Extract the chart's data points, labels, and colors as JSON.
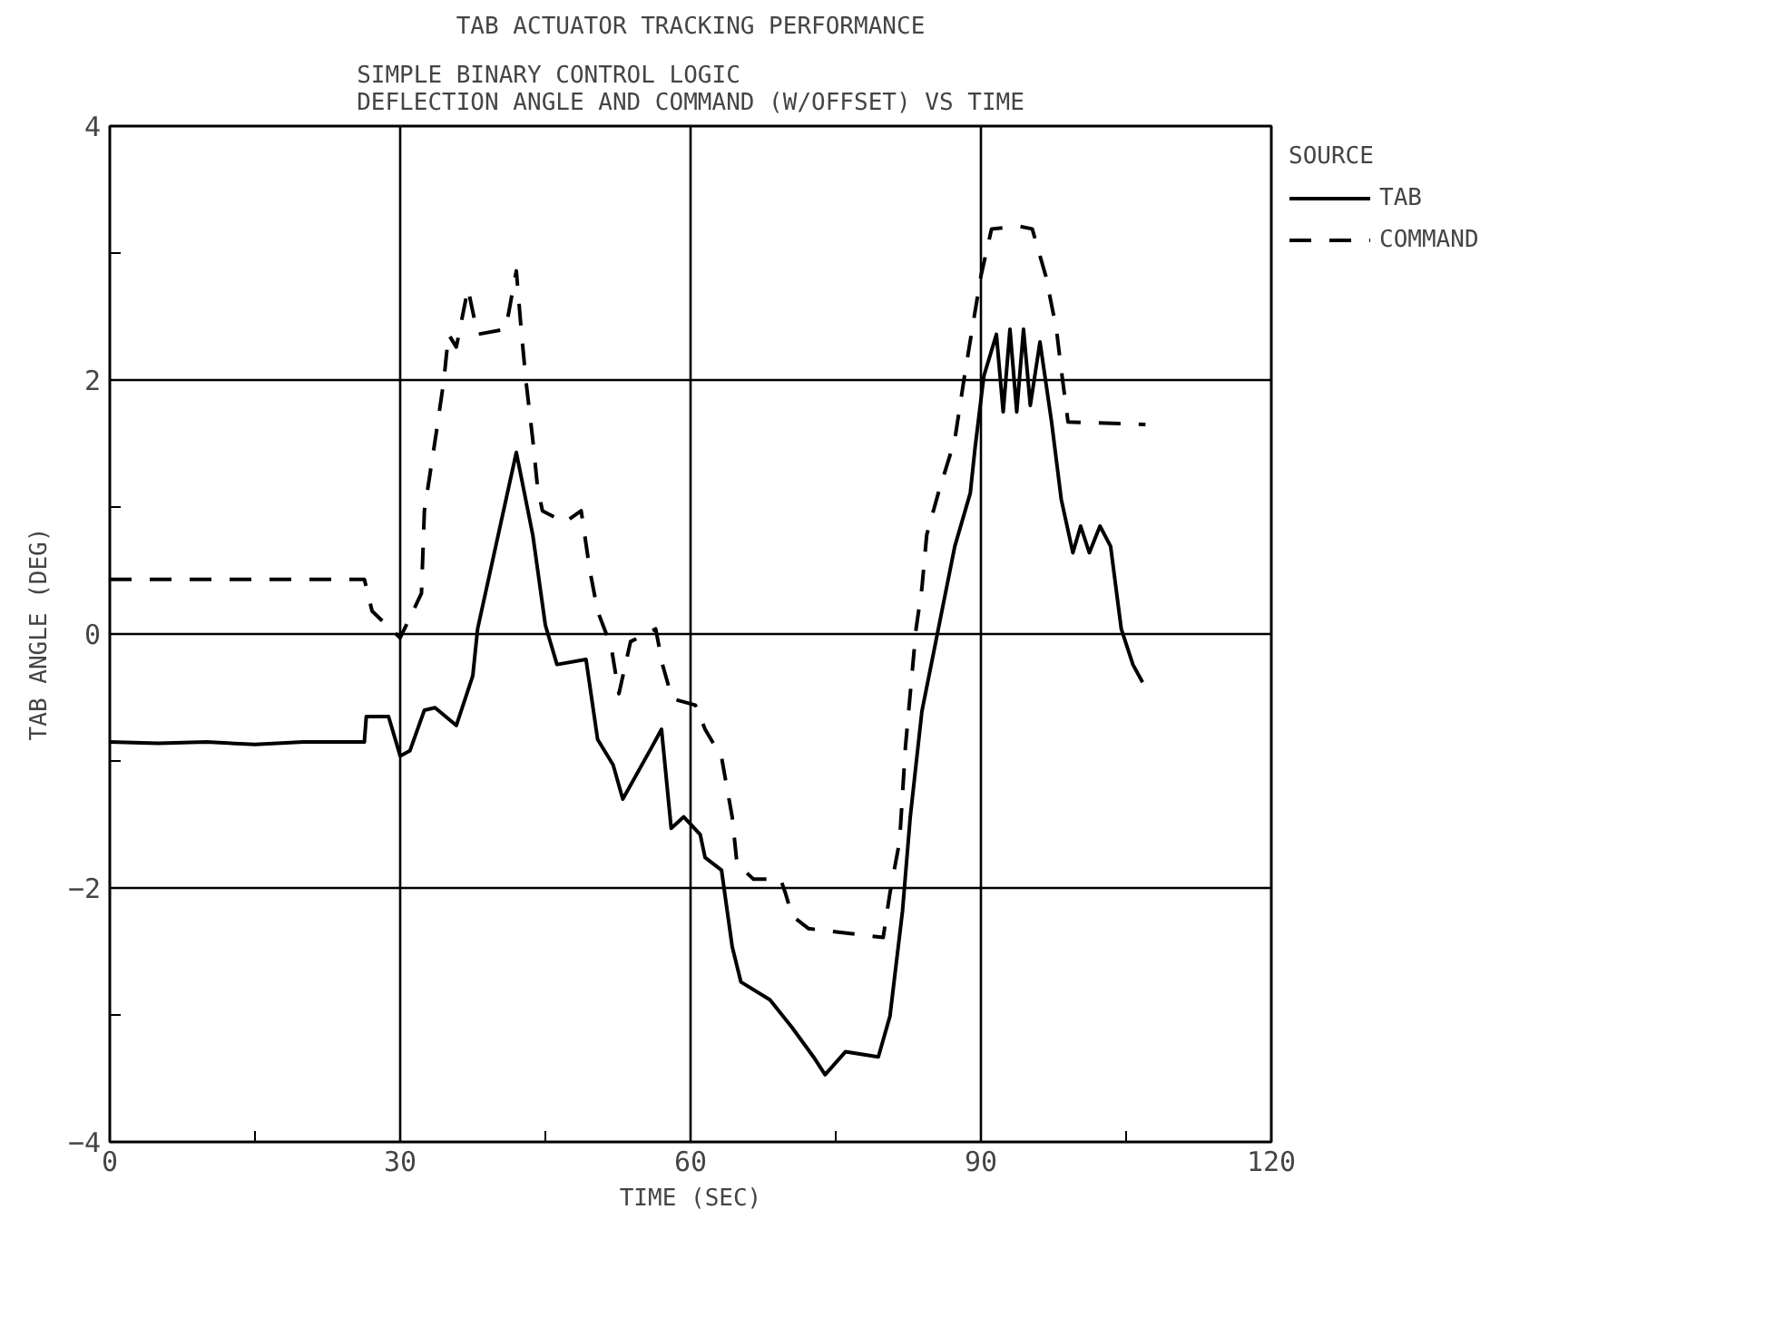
{
  "chart_data": {
    "type": "line",
    "title": "TAB ACTUATOR TRACKING PERFORMANCE",
    "subtitle": "SIMPLE BINARY CONTROL LOGIC\nDEFLECTION ANGLE AND COMMAND (W/OFFSET) VS TIME",
    "xlabel": "TIME (SEC)",
    "ylabel": "TAB ANGLE (DEG)",
    "legend_title": "SOURCE",
    "xlim": [
      0,
      120
    ],
    "ylim": [
      -4,
      4
    ],
    "xticks": [
      0,
      {
        "value": 15,
        "label": null
      },
      30,
      {
        "value": 45,
        "label": null
      },
      60,
      {
        "value": 75,
        "label": null
      },
      90,
      {
        "value": 105,
        "label": null
      },
      120
    ],
    "yticks": [
      -4,
      {
        "value": -3,
        "label": null
      },
      -2,
      {
        "value": -1,
        "label": null
      },
      0,
      {
        "value": 1,
        "label": null
      },
      2,
      {
        "value": 3,
        "label": null
      },
      4
    ],
    "grid": true,
    "legend": "right",
    "marker": "none",
    "series": [
      {
        "name": "TAB",
        "color": "#000000",
        "line_style": "solid",
        "x": [
          0,
          5,
          10,
          15,
          20,
          26.3,
          26.5,
          28.8,
          30,
          31,
          32.5,
          33.6,
          35.8,
          37.5,
          38,
          42,
          43.7,
          45,
          46.2,
          49.2,
          50.4,
          52,
          53,
          56,
          57,
          58,
          59.3,
          61,
          61.5,
          63.2,
          64.3,
          65.2,
          68.2,
          70.5,
          72.7,
          73.9,
          76,
          79.4,
          80.6,
          81.9,
          82.7,
          83.9,
          85.6,
          87.3,
          88.9,
          89.4,
          90.3,
          91.6,
          92.3,
          93,
          93.7,
          94.4,
          95.1,
          96.1,
          97.3,
          98.3,
          99.5,
          100.3,
          101.2,
          102.3,
          103.4,
          104.5,
          105.7,
          106.7
        ],
        "values": [
          -0.85,
          -0.86,
          -0.85,
          -0.87,
          -0.85,
          -0.85,
          -0.65,
          -0.65,
          -0.96,
          -0.92,
          -0.6,
          -0.58,
          -0.72,
          -0.33,
          0.04,
          1.43,
          0.78,
          0.07,
          -0.24,
          -0.2,
          -0.83,
          -1.03,
          -1.3,
          -0.89,
          -0.75,
          -1.53,
          -1.44,
          -1.58,
          -1.76,
          -1.86,
          -2.46,
          -2.74,
          -2.88,
          -3.1,
          -3.33,
          -3.47,
          -3.29,
          -3.33,
          -3.01,
          -2.18,
          -1.44,
          -0.61,
          0.04,
          0.69,
          1.11,
          1.47,
          2.03,
          2.36,
          1.75,
          2.4,
          1.75,
          2.4,
          1.8,
          2.3,
          1.67,
          1.06,
          0.64,
          0.85,
          0.64,
          0.85,
          0.69,
          0.04,
          -0.24,
          -0.38
        ]
      },
      {
        "name": "COMMAND",
        "color": "#000000",
        "line_style": "dashed",
        "x": [
          0,
          26.3,
          27.1,
          30,
          32.2,
          32.5,
          33.7,
          34.5,
          35,
          35.8,
          37,
          38,
          40.9,
          42,
          42.5,
          43,
          43.7,
          44.2,
          44.7,
          47,
          48.7,
          49.6,
          50.4,
          51.8,
          52.6,
          53.8,
          56.4,
          57.1,
          58.1,
          60.5,
          61.5,
          63.2,
          64.3,
          64.8,
          66.5,
          69.3,
          69.8,
          70.5,
          72.2,
          79.9,
          80.6,
          81.6,
          82.2,
          83.3,
          83.9,
          84.4,
          85.6,
          87.3,
          88.3,
          88.9,
          90,
          91.1,
          94,
          95.3,
          96.7,
          97.8,
          98.3,
          99,
          107
        ],
        "values": [
          0.43,
          0.43,
          0.18,
          -0.03,
          0.32,
          0.97,
          1.57,
          1.99,
          2.36,
          2.26,
          2.72,
          2.36,
          2.4,
          2.86,
          2.4,
          1.99,
          1.53,
          1.15,
          0.97,
          0.88,
          0.97,
          0.5,
          0.18,
          -0.1,
          -0.47,
          -0.06,
          0.04,
          -0.24,
          -0.51,
          -0.56,
          -0.75,
          -0.97,
          -1.44,
          -1.81,
          -1.93,
          -1.93,
          -2.04,
          -2.22,
          -2.32,
          -2.39,
          -2.04,
          -1.63,
          -0.89,
          0.04,
          0.36,
          0.78,
          1.11,
          1.53,
          2.03,
          2.31,
          2.82,
          3.19,
          3.21,
          3.19,
          2.82,
          2.4,
          2.08,
          1.67,
          1.65
        ]
      }
    ]
  }
}
